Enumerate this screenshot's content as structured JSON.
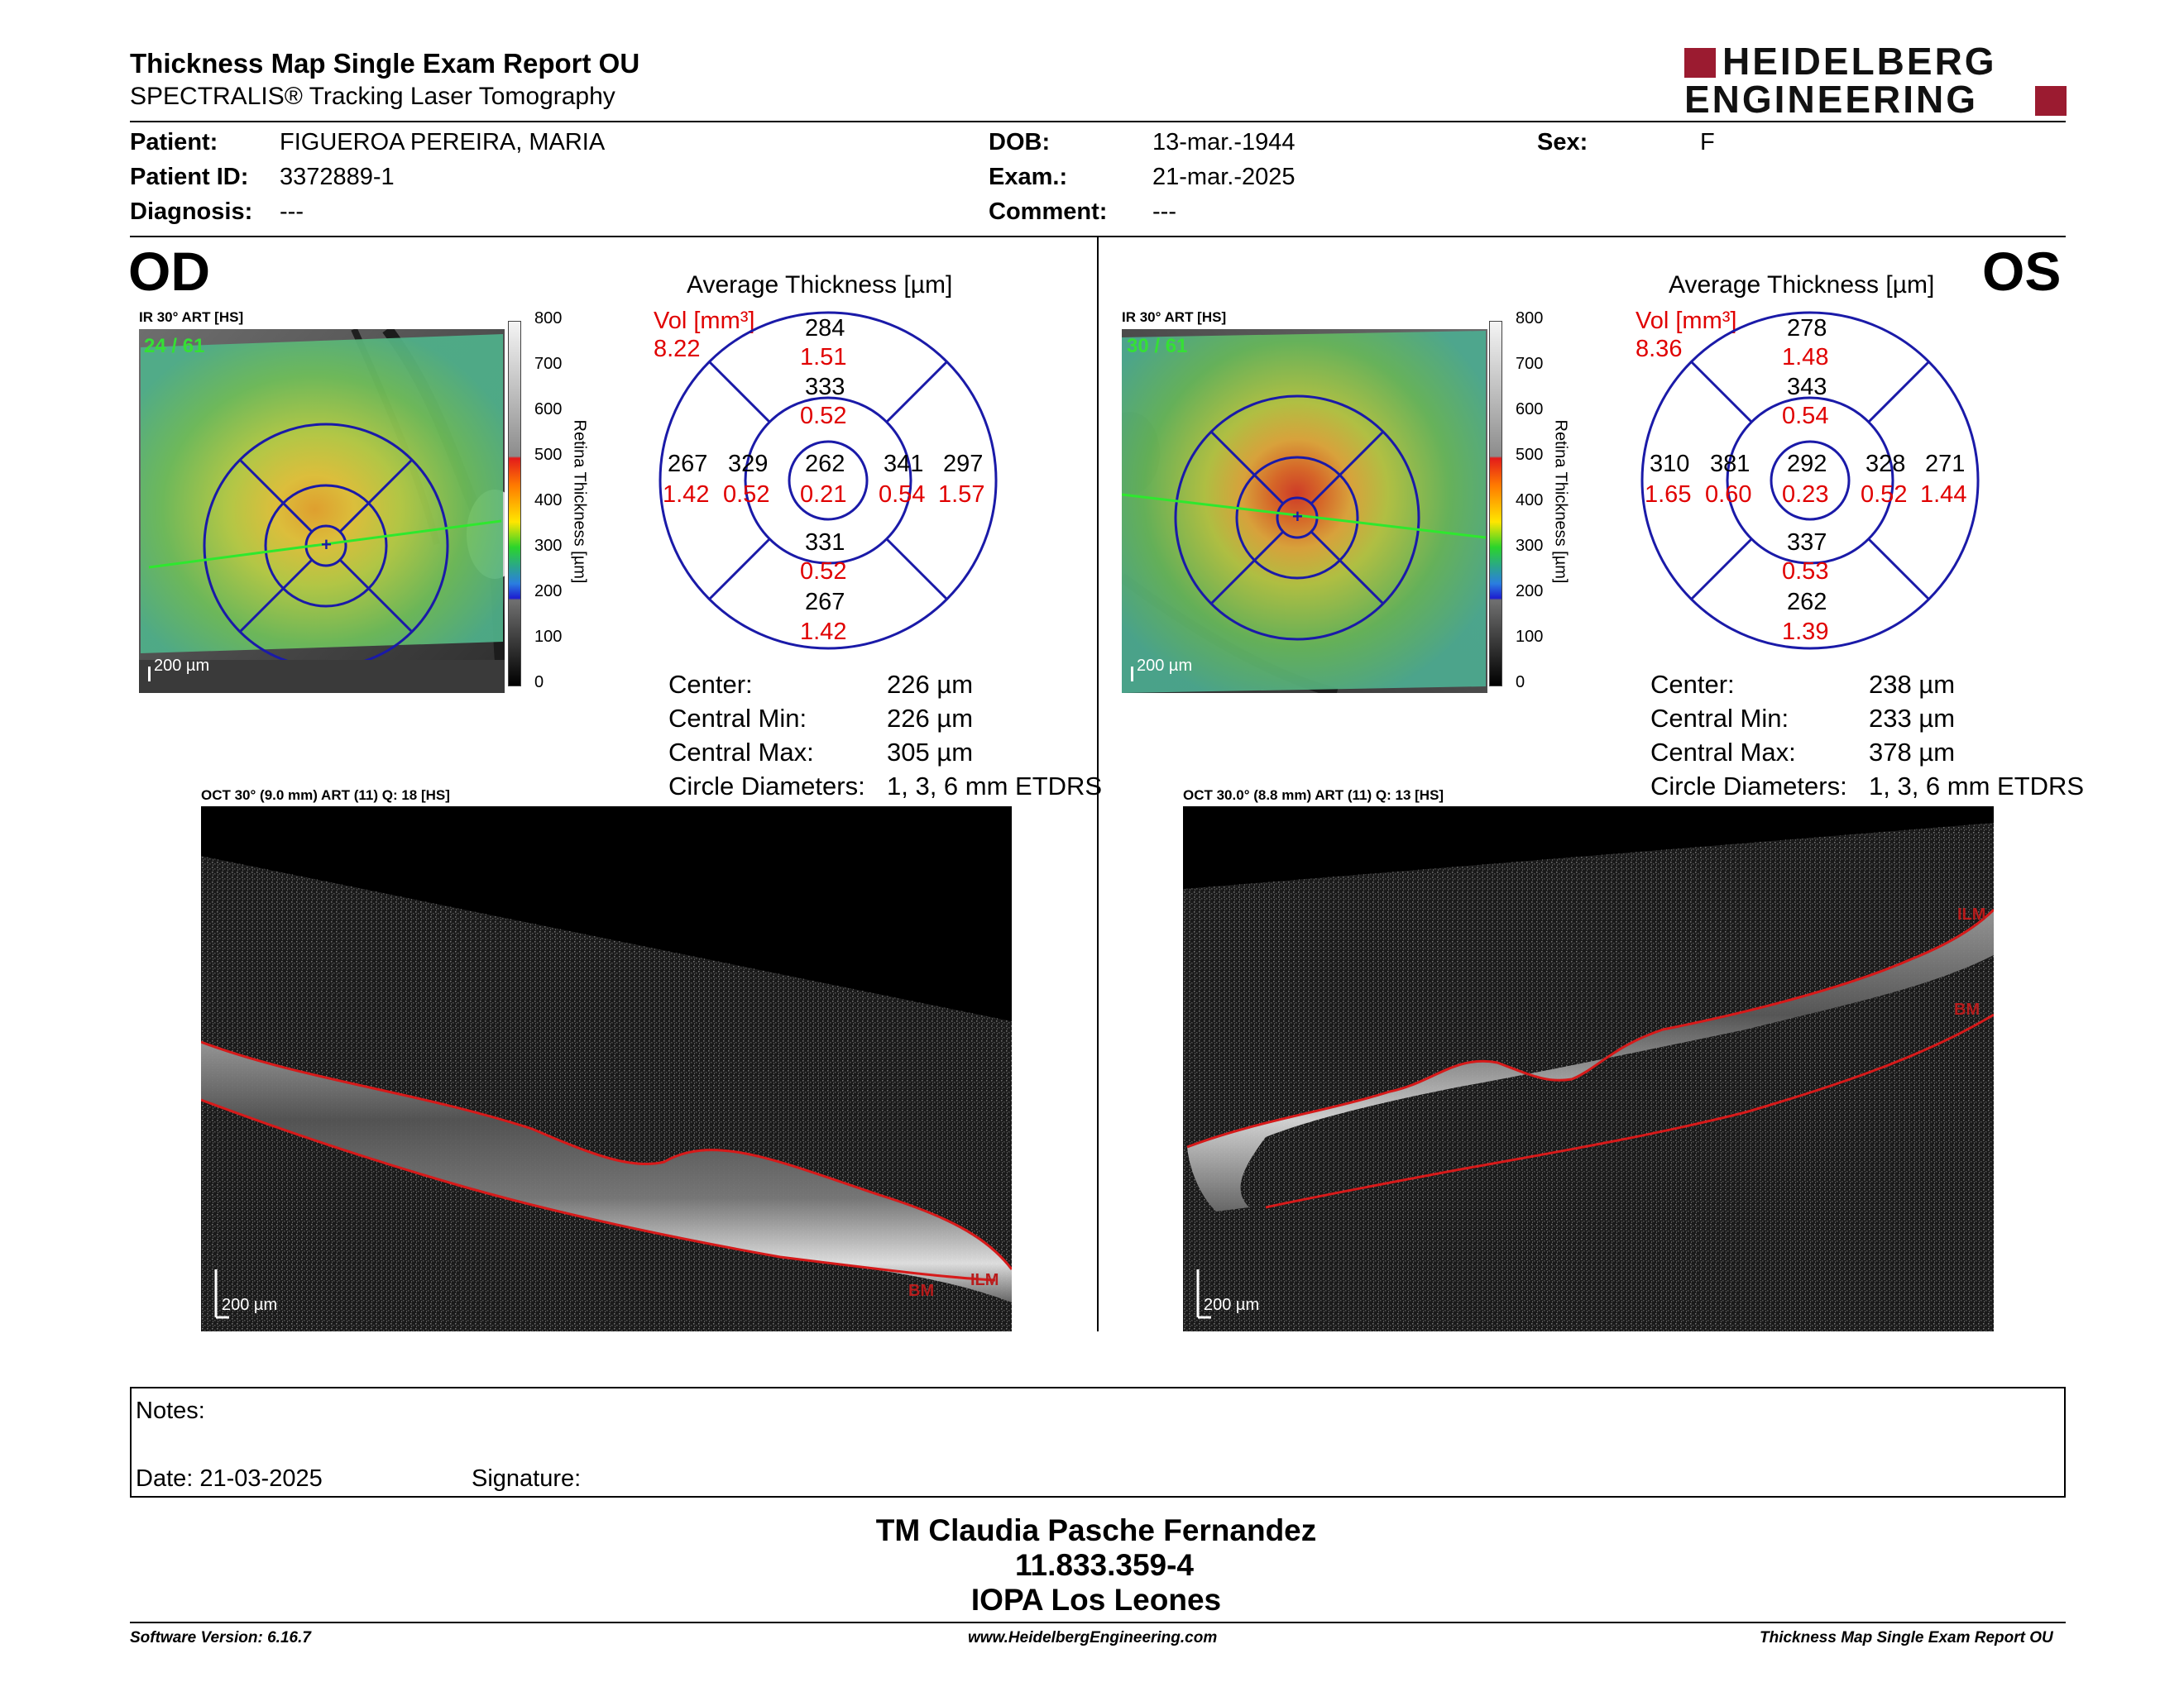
{
  "header": {
    "title": "Thickness Map Single Exam Report OU",
    "subtitle": "SPECTRALIS® Tracking Laser Tomography",
    "brand_line1": "HEIDELBERG",
    "brand_line2": "ENGINEERING"
  },
  "patient": {
    "patient_label": "Patient:",
    "patient_value": "FIGUEROA PEREIRA, MARIA",
    "id_label": "Patient ID:",
    "id_value": "3372889-1",
    "diag_label": "Diagnosis:",
    "diag_value": "---",
    "dob_label": "DOB:",
    "dob_value": "13-mar.-1944",
    "exam_label": "Exam.:",
    "exam_value": "21-mar.-2025",
    "comment_label": "Comment:",
    "comment_value": "---",
    "sex_label": "Sex:",
    "sex_value": "F"
  },
  "od": {
    "eye": "OD",
    "ir_label": "IR 30° ART [HS]",
    "frames": "24 / 61",
    "scale": "200 µm",
    "avg_title": "Average Thickness [µm]",
    "vol_label": "Vol [mm³]",
    "vol_value": "8.22",
    "grid": {
      "center_t": "262",
      "center_v": "0.21",
      "inner_sup_t": "333",
      "inner_sup_v": "0.52",
      "inner_inf_t": "331",
      "inner_inf_v": "0.52",
      "inner_left_t": "329",
      "inner_left_v": "0.52",
      "inner_right_t": "341",
      "inner_right_v": "0.54",
      "outer_sup_t": "284",
      "outer_sup_v": "1.51",
      "outer_inf_t": "267",
      "outer_inf_v": "1.42",
      "outer_left_t": "267",
      "outer_left_v": "1.42",
      "outer_right_t": "297",
      "outer_right_v": "1.57"
    },
    "stats": [
      {
        "label": "Center:",
        "value": "226 µm"
      },
      {
        "label": "Central Min:",
        "value": "226 µm"
      },
      {
        "label": "Central Max:",
        "value": "305 µm"
      },
      {
        "label": "Circle Diameters:",
        "value": "1, 3, 6 mm ETDRS"
      }
    ],
    "oct_label": "OCT 30° (9.0 mm) ART (11) Q: 18 [HS]",
    "oct_scale": "200 µm",
    "ilm": "ILM",
    "bm": "BM"
  },
  "os": {
    "eye": "OS",
    "ir_label": "IR 30° ART [HS]",
    "frames": "30 / 61",
    "scale": "200 µm",
    "avg_title": "Average Thickness [µm]",
    "vol_label": "Vol [mm³]",
    "vol_value": "8.36",
    "grid": {
      "center_t": "292",
      "center_v": "0.23",
      "inner_sup_t": "343",
      "inner_sup_v": "0.54",
      "inner_inf_t": "337",
      "inner_inf_v": "0.53",
      "inner_left_t": "381",
      "inner_left_v": "0.60",
      "inner_right_t": "328",
      "inner_right_v": "0.52",
      "outer_sup_t": "278",
      "outer_sup_v": "1.48",
      "outer_inf_t": "262",
      "outer_inf_v": "1.39",
      "outer_left_t": "310",
      "outer_left_v": "1.65",
      "outer_right_t": "271",
      "outer_right_v": "1.44"
    },
    "stats": [
      {
        "label": "Center:",
        "value": "238 µm"
      },
      {
        "label": "Central Min:",
        "value": "233 µm"
      },
      {
        "label": "Central Max:",
        "value": "378 µm"
      },
      {
        "label": "Circle Diameters:",
        "value": "1, 3, 6 mm ETDRS"
      }
    ],
    "oct_label": "OCT 30.0° (8.8 mm) ART (11) Q: 13 [HS]",
    "oct_scale": "200 µm",
    "ilm": "ILM",
    "bm": "BM"
  },
  "colorbar": {
    "ticks": [
      "800",
      "700",
      "600",
      "500",
      "400",
      "300",
      "200",
      "100",
      "0"
    ],
    "title": "Retina Thickness [µm]"
  },
  "notes": {
    "notes_label": "Notes:",
    "date_label": "Date: 21-03-2025",
    "signature_label": "Signature:"
  },
  "signoff": {
    "line1": "TM Claudia Pasche Fernandez",
    "line2": "11.833.359-4",
    "line3": "IOPA Los Leones"
  },
  "footer": {
    "left": "Software Version: 6.16.7",
    "center": "www.HeidelbergEngineering.com",
    "right": "Thickness Map Single Exam Report OU"
  },
  "colors": {
    "grid_blue": "#1a1aa8",
    "value_red": "#e00000",
    "brand_red": "#9b1b30"
  }
}
